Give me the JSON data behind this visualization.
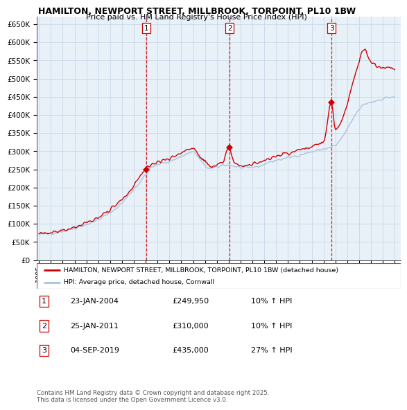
{
  "title": "HAMILTON, NEWPORT STREET, MILLBROOK, TORPOINT, PL10 1BW",
  "subtitle": "Price paid vs. HM Land Registry's House Price Index (HPI)",
  "ylim": [
    0,
    670000
  ],
  "yticks": [
    0,
    50000,
    100000,
    150000,
    200000,
    250000,
    300000,
    350000,
    400000,
    450000,
    500000,
    550000,
    600000,
    650000
  ],
  "xlim_start": 1994.8,
  "xlim_end": 2025.5,
  "hpi_color": "#a8c4e0",
  "price_color": "#cc0000",
  "grid_color": "#c8d8e8",
  "bg_color": "#e8f0f8",
  "legend_label_price": "HAMILTON, NEWPORT STREET, MILLBROOK, TORPOINT, PL10 1BW (detached house)",
  "legend_label_hpi": "HPI: Average price, detached house, Cornwall",
  "sale_points": [
    {
      "date_num": 2004.07,
      "price": 249950,
      "label": "1"
    },
    {
      "date_num": 2011.07,
      "price": 310000,
      "label": "2"
    },
    {
      "date_num": 2019.67,
      "price": 435000,
      "label": "3"
    }
  ],
  "sale_info": [
    {
      "num": "1",
      "date": "23-JAN-2004",
      "price": "£249,950",
      "hpi": "10% ↑ HPI"
    },
    {
      "num": "2",
      "date": "25-JAN-2011",
      "price": "£310,000",
      "hpi": "10% ↑ HPI"
    },
    {
      "num": "3",
      "date": "04-SEP-2019",
      "price": "£435,000",
      "hpi": "27% ↑ HPI"
    }
  ],
  "vline_color": "#cc0000",
  "footer": "Contains HM Land Registry data © Crown copyright and database right 2025.\nThis data is licensed under the Open Government Licence v3.0.",
  "xticks": [
    1995,
    1996,
    1997,
    1998,
    1999,
    2000,
    2001,
    2002,
    2003,
    2004,
    2005,
    2006,
    2007,
    2008,
    2009,
    2010,
    2011,
    2012,
    2013,
    2014,
    2015,
    2016,
    2017,
    2018,
    2019,
    2020,
    2021,
    2022,
    2023,
    2024,
    2025
  ]
}
